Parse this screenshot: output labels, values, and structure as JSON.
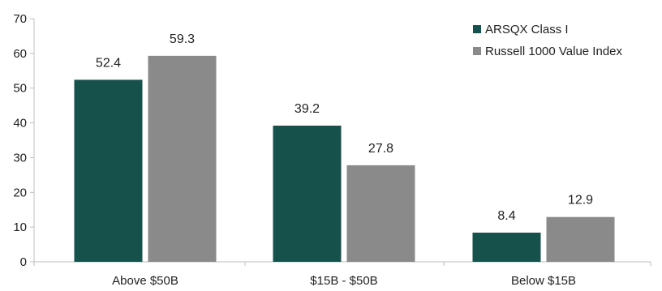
{
  "chart_data": {
    "type": "bar",
    "categories": [
      "Above $50B",
      "$15B - $50B",
      "Below $15B"
    ],
    "series": [
      {
        "name": "ARSQX Class I",
        "values": [
          52.4,
          39.2,
          8.4
        ],
        "color": "#16524b"
      },
      {
        "name": "Russell 1000 Value Index",
        "values": [
          59.3,
          27.8,
          12.9
        ],
        "color": "#8a8a8a"
      }
    ],
    "value_labels": [
      [
        "52.4",
        "39.2",
        "8.4"
      ],
      [
        "59.3",
        "27.8",
        "12.9"
      ]
    ],
    "yticks": [
      0,
      10,
      20,
      30,
      40,
      50,
      60,
      70
    ],
    "ytick_labels": [
      "0",
      "10",
      "20",
      "30",
      "40",
      "50",
      "60",
      "70"
    ],
    "ylim": [
      0,
      70
    ],
    "grid": false,
    "legend_position": "top-right"
  }
}
